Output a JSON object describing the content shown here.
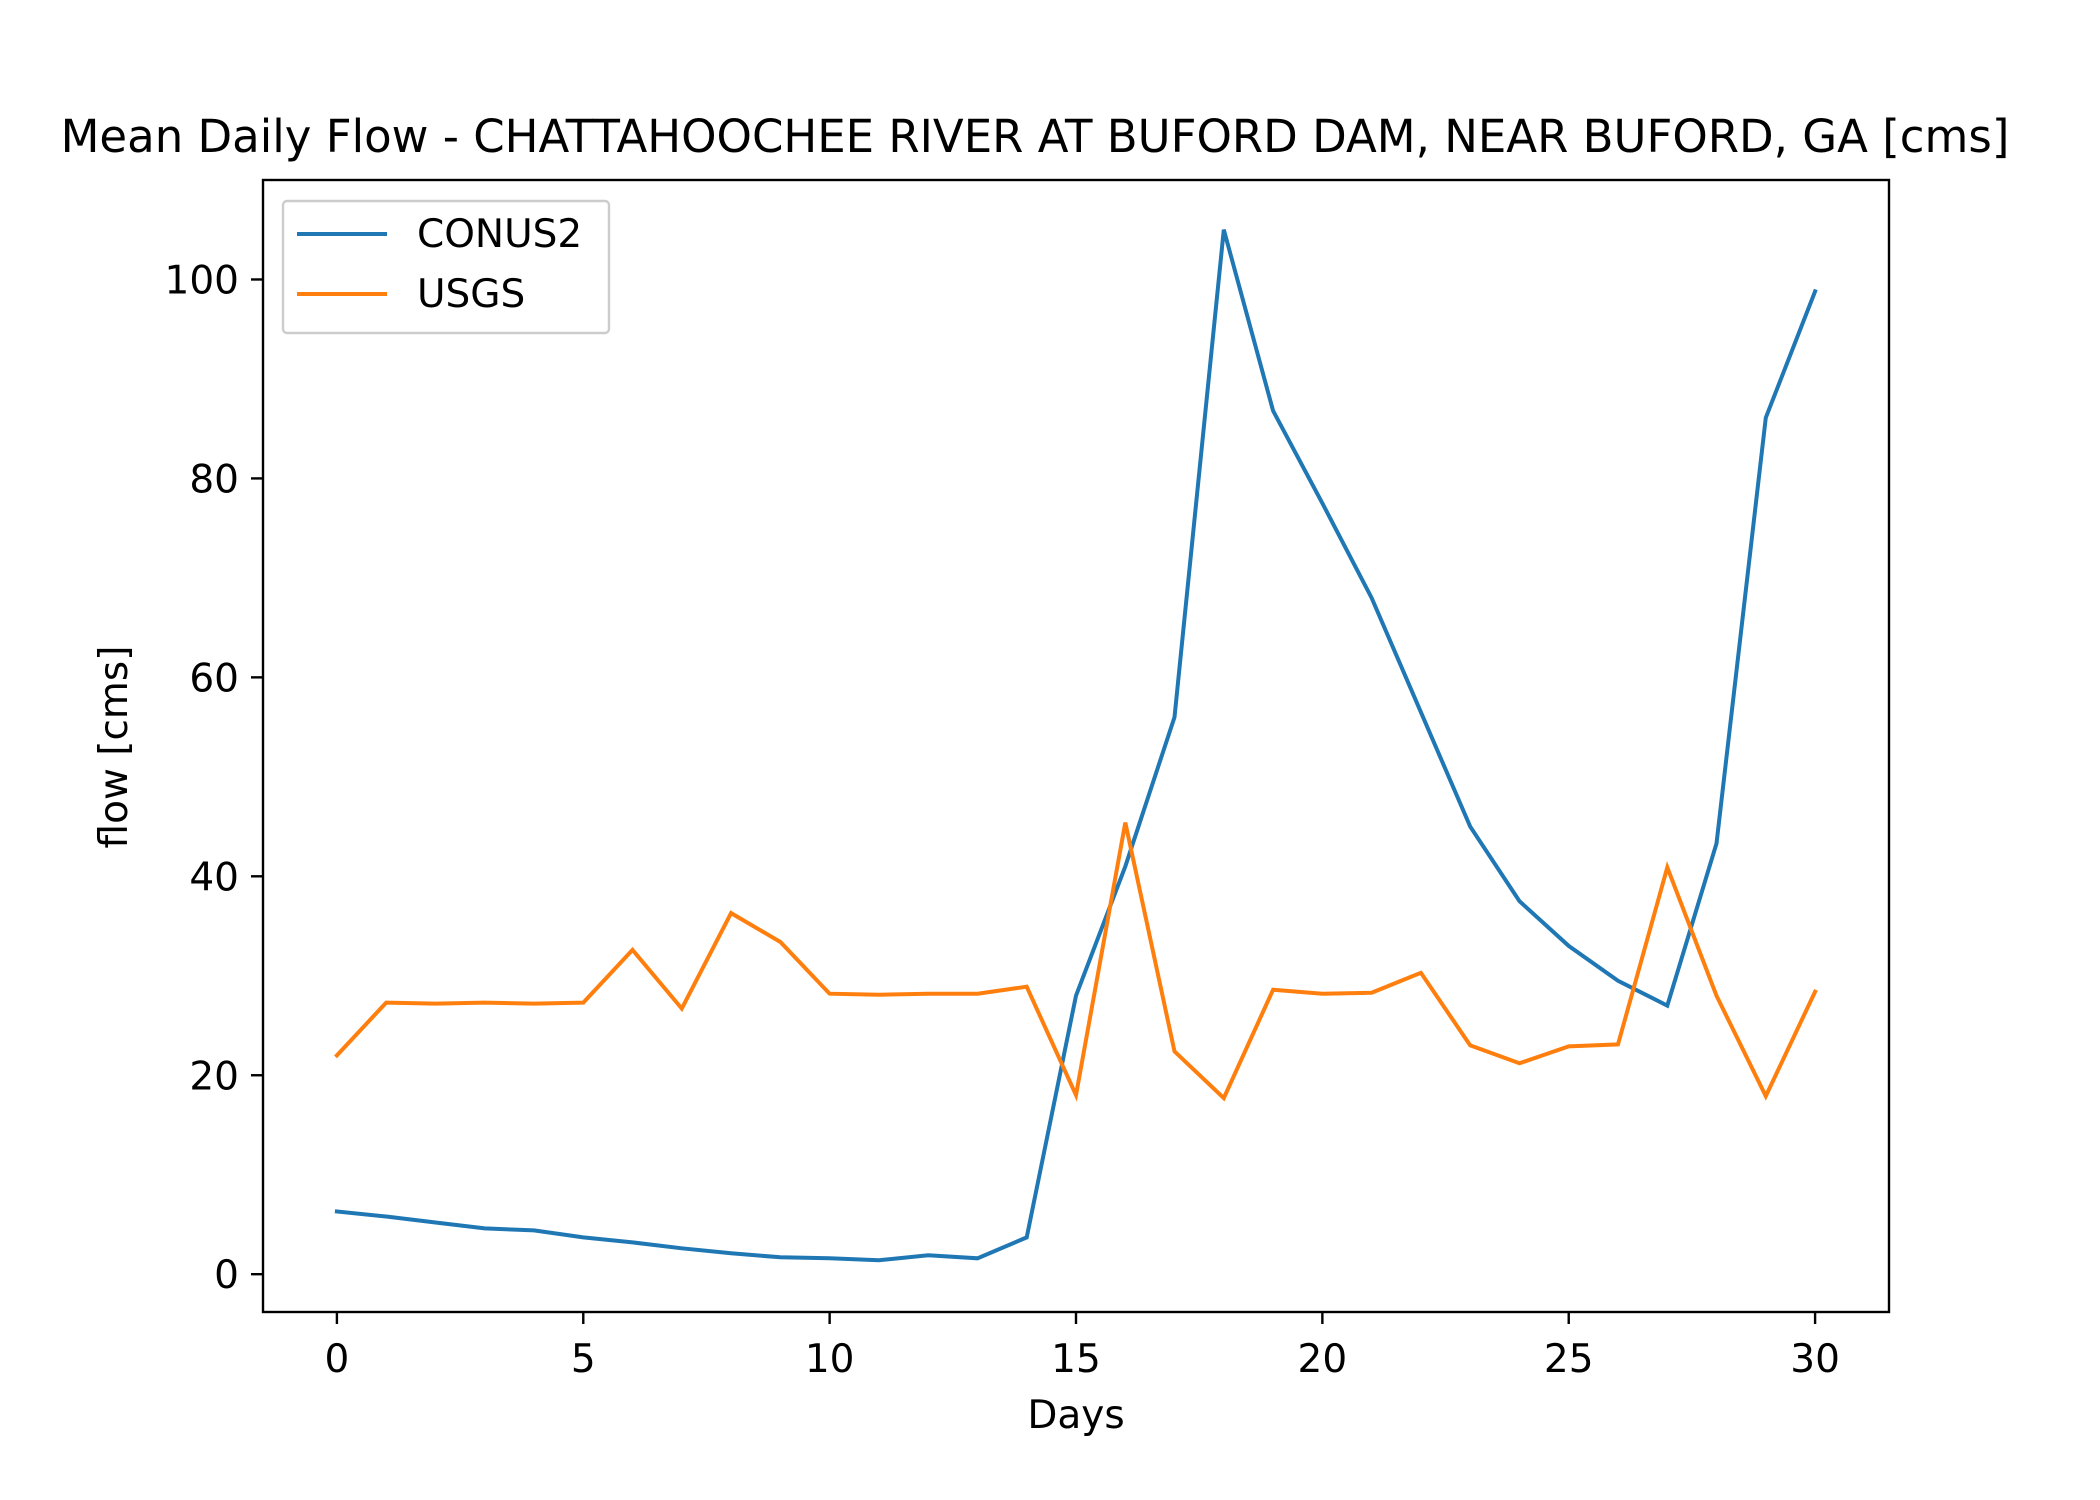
{
  "chart_data": {
    "type": "line",
    "title": "Mean Daily Flow - CHATTAHOOCHEE RIVER AT BUFORD DAM, NEAR BUFORD, GA [cms]",
    "xlabel": "Days",
    "ylabel": "flow [cms]",
    "xlim": [
      -1.5,
      31.5
    ],
    "ylim": [
      -3.8,
      110
    ],
    "xticks": [
      0,
      5,
      10,
      15,
      20,
      25,
      30
    ],
    "yticks": [
      0,
      20,
      40,
      60,
      80,
      100
    ],
    "grid": false,
    "legend_position": "upper-left",
    "x": [
      0,
      1,
      2,
      3,
      4,
      5,
      6,
      7,
      8,
      9,
      10,
      11,
      12,
      13,
      14,
      15,
      16,
      17,
      18,
      19,
      20,
      21,
      22,
      23,
      24,
      25,
      26,
      27,
      28,
      29,
      30
    ],
    "series": [
      {
        "name": "CONUS2",
        "color": "#1f77b4",
        "values": [
          6.3,
          5.8,
          5.2,
          4.6,
          4.4,
          3.7,
          3.2,
          2.6,
          2.1,
          1.7,
          1.6,
          1.4,
          1.9,
          1.6,
          3.7,
          28.0,
          41.0,
          56.0,
          105.0,
          86.8,
          77.5,
          68.0,
          56.5,
          45.0,
          37.5,
          33.0,
          29.5,
          27.0,
          43.3,
          86.1,
          98.8
        ]
      },
      {
        "name": "USGS",
        "color": "#ff7f0e",
        "values": [
          22.0,
          27.3,
          27.2,
          27.3,
          27.2,
          27.3,
          32.6,
          26.7,
          36.3,
          33.4,
          28.2,
          28.1,
          28.2,
          28.2,
          28.9,
          18.0,
          45.4,
          22.4,
          17.7,
          28.6,
          28.2,
          28.3,
          30.3,
          23.0,
          21.2,
          22.9,
          23.1,
          40.9,
          28.0,
          17.9,
          28.4
        ]
      }
    ]
  }
}
